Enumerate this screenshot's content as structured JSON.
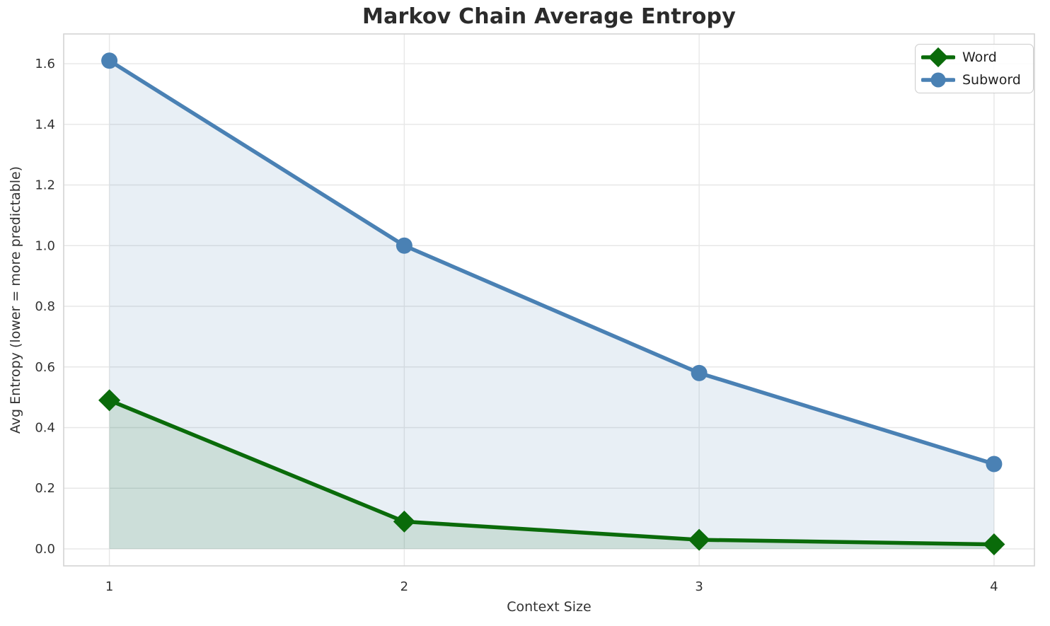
{
  "chart_data": {
    "type": "line",
    "title": "Markov Chain Average Entropy",
    "xlabel": "Context Size",
    "ylabel": "Avg Entropy (lower = more predictable)",
    "x": [
      1,
      2,
      3,
      4
    ],
    "series": [
      {
        "name": "Word",
        "values": [
          0.49,
          0.09,
          0.03,
          0.015
        ],
        "color": "#0a6b0a",
        "fill_color": "rgba(10,107,10,0.13)",
        "marker": "diamond"
      },
      {
        "name": "Subword",
        "values": [
          1.61,
          1.0,
          0.58,
          0.28
        ],
        "color": "#4a81b4",
        "fill_color": "rgba(74,129,180,0.13)",
        "marker": "circle"
      }
    ],
    "xticks": [
      1,
      2,
      3,
      4
    ],
    "yticks": [
      0.0,
      0.2,
      0.4,
      0.6,
      0.8,
      1.0,
      1.2,
      1.4,
      1.6
    ],
    "xlim": [
      0.845,
      4.137
    ],
    "ylim": [
      -0.056,
      1.698
    ],
    "grid": true,
    "area_fill": true,
    "legend_position": "upper right",
    "colors": {
      "grid": "#e7e7e7",
      "spine": "#d4d4d4",
      "tick_text": "#333333",
      "title_text": "#2b2b2b"
    }
  }
}
